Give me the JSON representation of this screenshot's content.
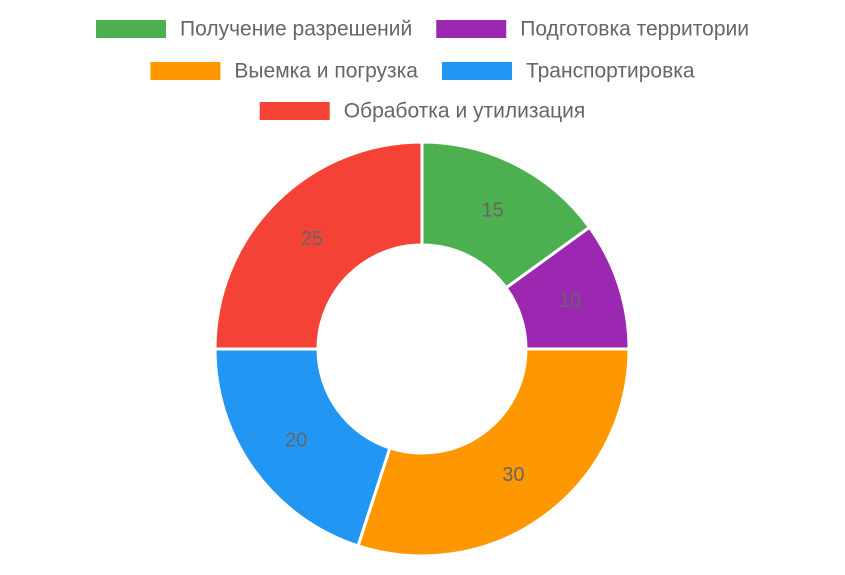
{
  "chart_data": {
    "type": "pie",
    "variant": "doughnut",
    "categories": [
      "Получение разрешений",
      "Подготовка территории",
      "Выемка и погрузка",
      "Транспортировка",
      "Обработка и утилизация"
    ],
    "values": [
      15,
      10,
      30,
      20,
      25
    ],
    "colors": [
      "#4caf50",
      "#9c27b0",
      "#ff9800",
      "#2196f3",
      "#f44336"
    ],
    "title": "",
    "legend_position": "top",
    "data_labels": true
  }
}
